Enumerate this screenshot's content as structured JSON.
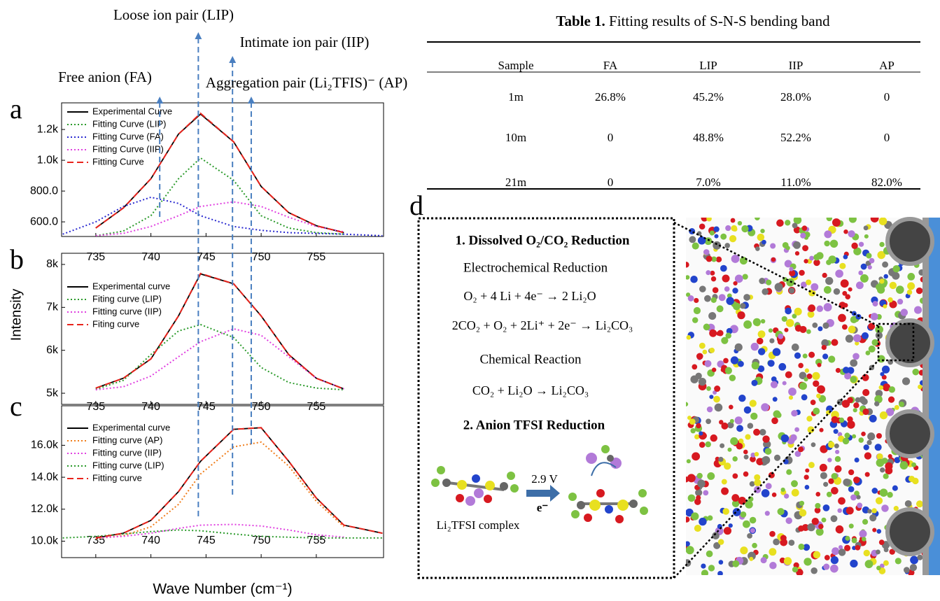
{
  "chart_data": [
    {
      "type": "line",
      "panel": "a",
      "xlim": [
        731.9,
        761.1
      ],
      "ylim": [
        505,
        1373
      ],
      "xticks": [
        735,
        740,
        745,
        750,
        755
      ],
      "yticks": [
        {
          "value": 600,
          "label": "600.0"
        },
        {
          "value": 800,
          "label": "800.0"
        },
        {
          "value": 1000,
          "label": "1.0k"
        },
        {
          "value": 1200,
          "label": "1.2k"
        }
      ],
      "legend": "upper left",
      "x": [
        732,
        735,
        737.5,
        740,
        742.5,
        744.5,
        747.5,
        750,
        752.5,
        755,
        757.5,
        761
      ],
      "series": [
        {
          "name": "Experimental Curve",
          "color": "#000000",
          "linestyle": "solid",
          "values": [
            null,
            560,
            690,
            880,
            1170,
            1300,
            1120,
            830,
            660,
            575,
            530,
            null
          ]
        },
        {
          "name": "Fitting Curve  (LIP)",
          "color": "#2a9a2a",
          "linestyle": "dotted",
          "values": [
            null,
            510,
            540,
            640,
            880,
            1015,
            870,
            640,
            560,
            530,
            520,
            null
          ]
        },
        {
          "name": "Fitting Curve (FA)",
          "color": "#2a2ad0",
          "linestyle": "dotted",
          "values": [
            520,
            600,
            700,
            760,
            720,
            640,
            570,
            545,
            530,
            525,
            520,
            510
          ]
        },
        {
          "name": "Fitting Curve (IIP)",
          "color": "#e040e0",
          "linestyle": "dotted",
          "values": [
            null,
            510,
            525,
            570,
            640,
            700,
            730,
            700,
            630,
            570,
            535,
            null
          ]
        },
        {
          "name": "Fitting Curve",
          "color": "#e8231c",
          "linestyle": "dashed",
          "values": [
            null,
            560,
            690,
            880,
            1170,
            1305,
            1120,
            830,
            660,
            575,
            530,
            null
          ]
        }
      ]
    },
    {
      "type": "line",
      "panel": "b",
      "xlim": [
        731.9,
        761.1
      ],
      "ylim": [
        4740,
        8260
      ],
      "xticks": [
        735,
        740,
        745,
        750,
        755
      ],
      "yticks": [
        {
          "value": 5000,
          "label": "5k"
        },
        {
          "value": 6000,
          "label": "6k"
        },
        {
          "value": 7000,
          "label": "7k"
        },
        {
          "value": 8000,
          "label": "8k"
        }
      ],
      "legend": "upper left",
      "ylabel": "Intensity",
      "x": [
        732,
        735,
        737.5,
        740,
        742.5,
        744.5,
        747.5,
        750,
        752.5,
        755,
        757.5,
        761
      ],
      "series": [
        {
          "name": "Experimental curve",
          "color": "#000000",
          "linestyle": "solid",
          "values": [
            null,
            5120,
            5350,
            5800,
            6800,
            7780,
            7550,
            6800,
            5900,
            5350,
            5100,
            null
          ]
        },
        {
          "name": "Fiting curve (LIP)",
          "color": "#2a9a2a",
          "linestyle": "dotted",
          "values": [
            null,
            5090,
            5300,
            5900,
            6450,
            6600,
            6300,
            5600,
            5250,
            5120,
            5080,
            null
          ]
        },
        {
          "name": "Fitting curve (IIP)",
          "color": "#e040e0",
          "linestyle": "dotted",
          "values": [
            null,
            5080,
            5150,
            5400,
            5850,
            6200,
            6500,
            6350,
            5850,
            5350,
            5100,
            null
          ]
        },
        {
          "name": "Fiting curve",
          "color": "#e8231c",
          "linestyle": "dashed",
          "values": [
            null,
            5120,
            5350,
            5800,
            6800,
            7790,
            7550,
            6800,
            5900,
            5350,
            5100,
            null
          ]
        }
      ]
    },
    {
      "type": "line",
      "panel": "c",
      "xlim": [
        731.9,
        761.1
      ],
      "ylim": [
        8970,
        18470
      ],
      "xticks": [
        735,
        740,
        745,
        750,
        755
      ],
      "yticks": [
        {
          "value": 10000,
          "label": "10.0k"
        },
        {
          "value": 12000,
          "label": "12.0k"
        },
        {
          "value": 14000,
          "label": "14.0k"
        },
        {
          "value": 16000,
          "label": "16.0k"
        }
      ],
      "legend": "upper left",
      "xlabel": "Wave Number (cm⁻¹)",
      "x": [
        732,
        735,
        737.5,
        740,
        742.5,
        744.5,
        747.5,
        750,
        752.5,
        755,
        757.5,
        761
      ],
      "series": [
        {
          "name": "Experimental curve",
          "color": "#000000",
          "linestyle": "solid",
          "values": [
            null,
            10200,
            10500,
            11300,
            13100,
            15000,
            17000,
            17100,
            15000,
            12700,
            11000,
            10500
          ]
        },
        {
          "name": "Fitting curve (AP)",
          "color": "#f07d1a",
          "linestyle": "dotted",
          "values": [
            null,
            10150,
            10350,
            10900,
            12300,
            14200,
            15900,
            16200,
            14700,
            12500,
            10900,
            null
          ]
        },
        {
          "name": "Fitting curve (IIP)",
          "color": "#e040e0",
          "linestyle": "dotted",
          "values": [
            null,
            10200,
            10300,
            10500,
            10800,
            11000,
            11050,
            10950,
            10700,
            10400,
            10250,
            null
          ]
        },
        {
          "name": "Fitting curve (LIP)",
          "color": "#2a9a2a",
          "linestyle": "dotted",
          "values": [
            10200,
            10300,
            10450,
            10600,
            10700,
            10650,
            10450,
            10300,
            10250,
            10200,
            10200,
            10200
          ]
        },
        {
          "name": "Fitting curve",
          "color": "#e8231c",
          "linestyle": "dashed",
          "values": [
            null,
            10200,
            10500,
            11300,
            13100,
            15000,
            17000,
            17100,
            15000,
            12700,
            11000,
            10500
          ]
        }
      ]
    }
  ],
  "ion_pairs": [
    {
      "label": "Free anion (FA)",
      "x": 740.8
    },
    {
      "label": "Loose ion pair (LIP)",
      "x": 744.3
    },
    {
      "label": "Intimate ion pair (IIP)",
      "x": 747.4
    },
    {
      "label": "Aggregation pair (Li₂TFIS)⁻ (AP)",
      "x": 749.1
    }
  ],
  "panel_d": "d",
  "table": {
    "caption_label": "Table 1.",
    "caption": "Fitting results of S-N-S bending band",
    "header": [
      "Sample",
      "FA",
      "LIP",
      "IIP",
      "AP"
    ],
    "rows": [
      [
        "1m",
        "26.8%",
        "45.2%",
        "28.0%",
        "0"
      ],
      [
        "10m",
        "0",
        "48.8%",
        "52.2%",
        "0"
      ],
      [
        "21m",
        "0",
        "7.0%",
        "11.0%",
        "82.0%"
      ]
    ]
  },
  "diagram": {
    "section1": "1. Dissolved O₂/CO₂ Reduction",
    "subtitle1": "Electrochemical Reduction",
    "eq1": "O₂ + 4 Li + 4e⁻ → 2 Li₂O",
    "eq2": "2CO₂ + O₂ + 2Li⁺ + 2e⁻ → Li₂CO₃",
    "subtitle2": "Chemical  Reaction",
    "eq3": "CO₂ + Li₂O → Li₂CO₃",
    "section2": "2. Anion TFSI Reduction",
    "voltage": "2.9 V",
    "electron": "e⁻",
    "complex": "Li₂TFSI complex"
  }
}
